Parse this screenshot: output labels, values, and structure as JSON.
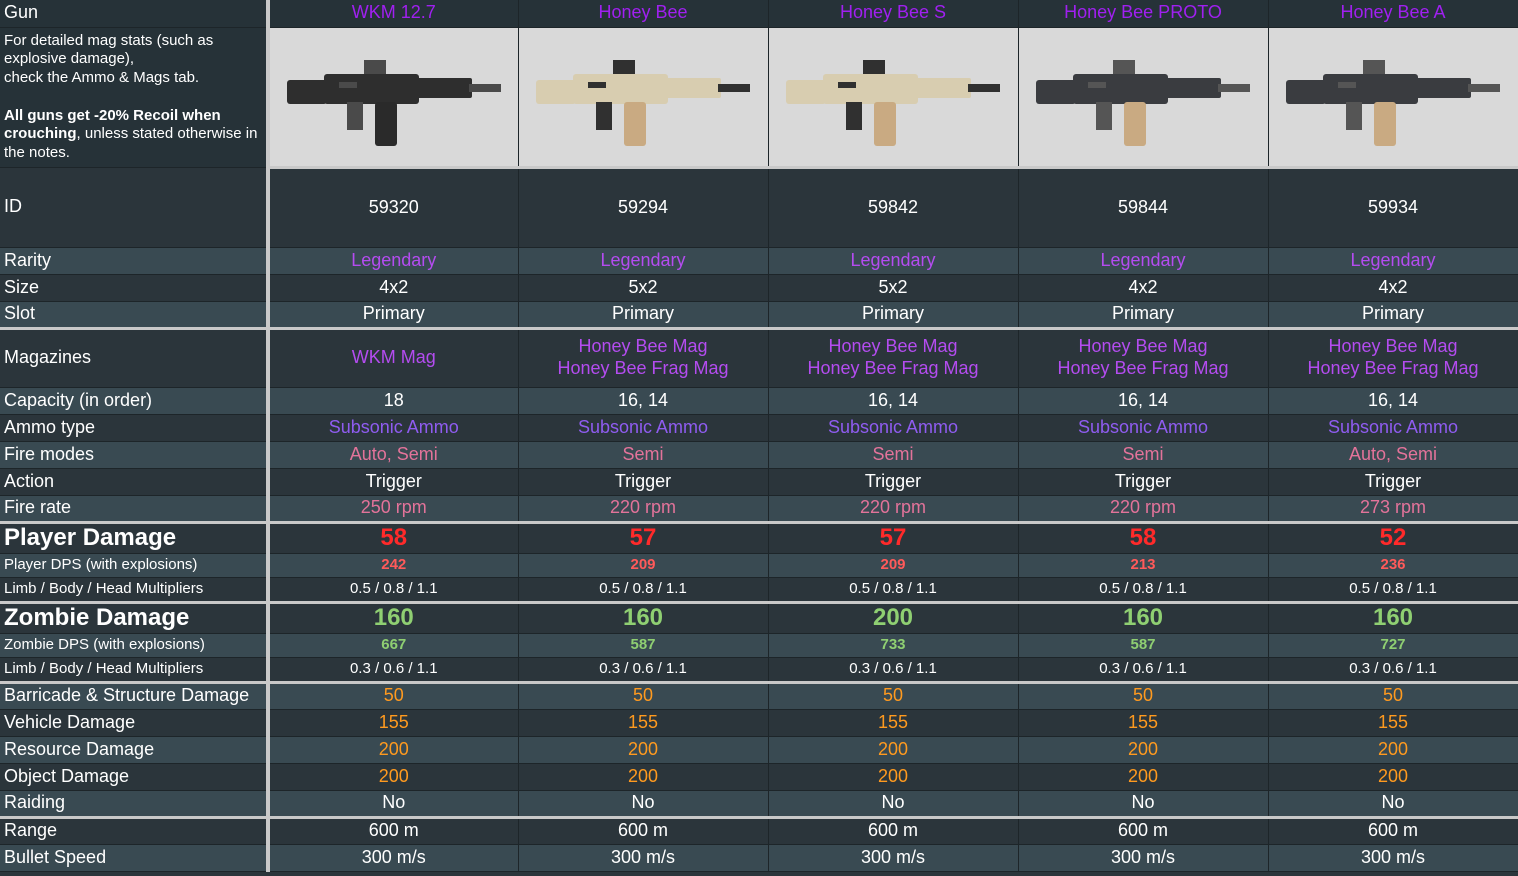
{
  "labels": {
    "gun": "Gun",
    "info_line1": "For detailed mag stats (such as explosive damage),",
    "info_line2": "check the Ammo & Mags tab.",
    "info_bold1": "All guns get -20% Recoil when crouching",
    "info_rest": ", unless stated otherwise in the notes.",
    "id": "ID",
    "rarity": "Rarity",
    "size": "Size",
    "slot": "Slot",
    "magazines": "Magazines",
    "capacity": "Capacity (in order)",
    "ammo": "Ammo type",
    "fire_modes": "Fire modes",
    "action": "Action",
    "fire_rate": "Fire rate",
    "player_damage": "Player Damage",
    "player_dps": "Player DPS (with explosions)",
    "player_mult": "Limb / Body / Head Multipliers",
    "zombie_damage": "Zombie Damage",
    "zombie_dps": "Zombie DPS (with explosions)",
    "zombie_mult": "Limb / Body / Head Multipliers",
    "barricade": "Barricade & Structure Damage",
    "vehicle": "Vehicle Damage",
    "resource": "Resource Damage",
    "object": "Object Damage",
    "raiding": "Raiding",
    "range": "Range",
    "bullet_speed": "Bullet Speed"
  },
  "guns": [
    {
      "name": "WKM 12.7",
      "id": "59320",
      "rarity": "Legendary",
      "size": "4x2",
      "slot": "Primary",
      "mag1": "WKM Mag",
      "mag2": "",
      "capacity": "18",
      "ammo": "Subsonic Ammo",
      "fire_modes": "Auto, Semi",
      "action": "Trigger",
      "fire_rate": "250 rpm",
      "player_damage": "58",
      "player_dps": "242",
      "player_mult": "0.5 / 0.8 / 1.1",
      "zombie_damage": "160",
      "zombie_dps": "667",
      "zombie_mult": "0.3 / 0.6 / 1.1",
      "barricade": "50",
      "vehicle": "155",
      "resource": "200",
      "object": "200",
      "raiding": "No",
      "range": "600 m",
      "bullet_speed": "300 m/s",
      "body_color": "#2e2e2e",
      "accent_color": "#4a4a4a",
      "mag_color": "#2a2a2a"
    },
    {
      "name": "Honey Bee",
      "id": "59294",
      "rarity": "Legendary",
      "size": "5x2",
      "slot": "Primary",
      "mag1": "Honey Bee Mag",
      "mag2": "Honey Bee Frag Mag",
      "capacity": "16, 14",
      "ammo": "Subsonic Ammo",
      "fire_modes": "Semi",
      "action": "Trigger",
      "fire_rate": "220 rpm",
      "player_damage": "57",
      "player_dps": "209",
      "player_mult": "0.5 / 0.8 / 1.1",
      "zombie_damage": "160",
      "zombie_dps": "587",
      "zombie_mult": "0.3 / 0.6 / 1.1",
      "barricade": "50",
      "vehicle": "155",
      "resource": "200",
      "object": "200",
      "raiding": "No",
      "range": "600 m",
      "bullet_speed": "300 m/s",
      "body_color": "#d8cdb0",
      "accent_color": "#303030",
      "mag_color": "#c9aa82"
    },
    {
      "name": "Honey Bee S",
      "id": "59842",
      "rarity": "Legendary",
      "size": "5x2",
      "slot": "Primary",
      "mag1": "Honey Bee Mag",
      "mag2": "Honey Bee Frag Mag",
      "capacity": "16, 14",
      "ammo": "Subsonic Ammo",
      "fire_modes": "Semi",
      "action": "Trigger",
      "fire_rate": "220 rpm",
      "player_damage": "57",
      "player_dps": "209",
      "player_mult": "0.5 / 0.8 / 1.1",
      "zombie_damage": "200",
      "zombie_dps": "733",
      "zombie_mult": "0.3 / 0.6 / 1.1",
      "barricade": "50",
      "vehicle": "155",
      "resource": "200",
      "object": "200",
      "raiding": "No",
      "range": "600 m",
      "bullet_speed": "300 m/s",
      "body_color": "#d8cdb0",
      "accent_color": "#303030",
      "mag_color": "#c9aa82"
    },
    {
      "name": "Honey Bee PROTO",
      "id": "59844",
      "rarity": "Legendary",
      "size": "4x2",
      "slot": "Primary",
      "mag1": "Honey Bee Mag",
      "mag2": "Honey Bee Frag Mag",
      "capacity": "16, 14",
      "ammo": "Subsonic Ammo",
      "fire_modes": "Semi",
      "action": "Trigger",
      "fire_rate": "220 rpm",
      "player_damage": "58",
      "player_dps": "213",
      "player_mult": "0.5 / 0.8 / 1.1",
      "zombie_damage": "160",
      "zombie_dps": "587",
      "zombie_mult": "0.3 / 0.6 / 1.1",
      "barricade": "50",
      "vehicle": "155",
      "resource": "200",
      "object": "200",
      "raiding": "No",
      "range": "600 m",
      "bullet_speed": "300 m/s",
      "body_color": "#3a3c40",
      "accent_color": "#555",
      "mag_color": "#c9aa82"
    },
    {
      "name": "Honey Bee A",
      "id": "59934",
      "rarity": "Legendary",
      "size": "4x2",
      "slot": "Primary",
      "mag1": "Honey Bee Mag",
      "mag2": "Honey Bee Frag Mag",
      "capacity": "16, 14",
      "ammo": "Subsonic Ammo",
      "fire_modes": "Auto, Semi",
      "action": "Trigger",
      "fire_rate": "273 rpm",
      "player_damage": "52",
      "player_dps": "236",
      "player_mult": "0.5 / 0.8 / 1.1",
      "zombie_damage": "160",
      "zombie_dps": "727",
      "zombie_mult": "0.3 / 0.6 / 1.1",
      "barricade": "50",
      "vehicle": "155",
      "resource": "200",
      "object": "200",
      "raiding": "No",
      "range": "600 m",
      "bullet_speed": "300 m/s",
      "body_color": "#3a3c40",
      "accent_color": "#555",
      "mag_color": "#c9aa82"
    }
  ]
}
